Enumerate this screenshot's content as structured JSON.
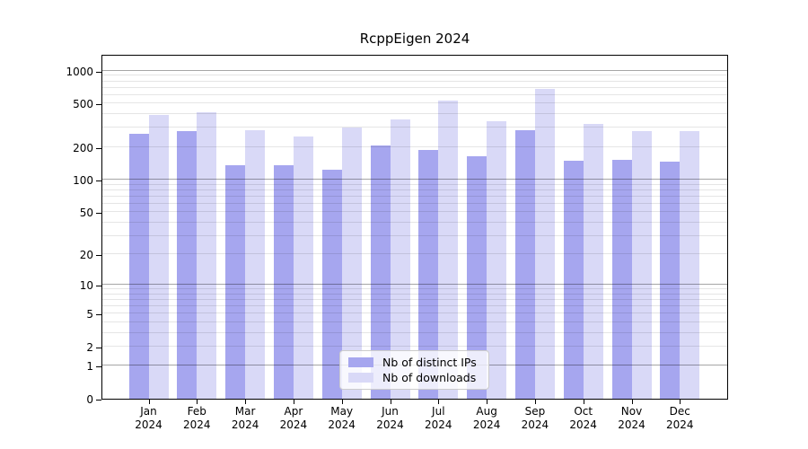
{
  "chart_data": {
    "type": "bar",
    "title": "RcppEigen 2024",
    "categories": [
      "Jan",
      "Feb",
      "Mar",
      "Apr",
      "May",
      "Jun",
      "Jul",
      "Aug",
      "Sep",
      "Oct",
      "Nov",
      "Dec"
    ],
    "x_year": "2024",
    "series": [
      {
        "name": "Nb of distinct IPs",
        "color": "#a6a6ef",
        "values": [
          266,
          282,
          137,
          137,
          123,
          207,
          188,
          164,
          286,
          150,
          152,
          146
        ]
      },
      {
        "name": "Nb of downloads",
        "color": "#d9d9f7",
        "values": [
          395,
          418,
          284,
          248,
          305,
          356,
          532,
          347,
          678,
          326,
          279,
          278
        ]
      }
    ],
    "y_scale": "log1p",
    "y_ticks": [
      0,
      1,
      2,
      5,
      10,
      20,
      50,
      100,
      200,
      500,
      1000
    ],
    "major_grid_values": [
      1,
      10,
      100,
      1000
    ],
    "ylim": [
      0,
      1415
    ],
    "grid": true,
    "legend_position": "inside-bottom-center",
    "xlabel": "",
    "ylabel": ""
  }
}
